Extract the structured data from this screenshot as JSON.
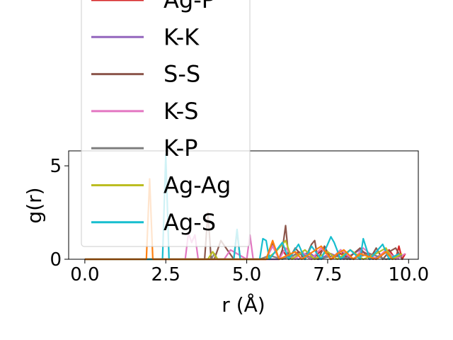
{
  "chart_data": {
    "type": "line",
    "title": "",
    "xlabel": "r (Å)",
    "ylabel": "g(r)",
    "xlim": [
      -0.5,
      10.3
    ],
    "ylim": [
      0,
      5.8
    ],
    "xticks": [
      0.0,
      2.5,
      5.0,
      7.5,
      10.0
    ],
    "xtick_labels": [
      "0.0",
      "2.5",
      "5.0",
      "7.5",
      "10.0"
    ],
    "yticks": [
      0,
      5
    ],
    "ytick_labels": [
      "0",
      "5"
    ],
    "grid": false,
    "legend_position": "upper-left, extends above plot",
    "series": [
      {
        "name": "Ag-P",
        "color": "#d62728",
        "x": [
          0,
          5.5,
          6.0,
          6.1,
          6.3,
          6.6,
          7.0,
          7.4,
          7.6,
          7.9,
          8.3,
          8.6,
          9.0,
          9.4,
          9.6,
          9.7,
          9.8,
          9.9
        ],
        "y": [
          0,
          0,
          0,
          0.5,
          0,
          0.4,
          0,
          0.6,
          0,
          0.3,
          0,
          0.4,
          0,
          0.5,
          0,
          0.7,
          0,
          0.3
        ]
      },
      {
        "name": "K-K",
        "color": "#9467bd",
        "x": [
          0,
          6.0,
          6.3,
          6.6,
          6.9,
          7.2,
          7.6,
          8.0,
          8.5,
          8.9,
          9.3,
          9.7
        ],
        "y": [
          0,
          0,
          0.2,
          0,
          0.4,
          0,
          0.3,
          0,
          0.5,
          0,
          0.4,
          0
        ]
      },
      {
        "name": "S-S",
        "color": "#8c564b",
        "x": [
          0,
          3.7,
          3.8,
          3.9,
          4.0,
          4.2,
          4.6,
          4.7,
          4.8,
          5.6,
          5.8,
          6.0,
          6.1,
          6.2,
          6.3,
          6.5,
          6.8,
          7.0,
          7.1,
          7.2,
          7.4,
          7.6,
          7.9,
          8.1,
          8.5,
          8.8,
          9.0,
          9.2,
          9.4,
          9.6,
          9.8
        ],
        "y": [
          0,
          0,
          2.5,
          0,
          0,
          1.0,
          0,
          1.5,
          0,
          0,
          0.9,
          0,
          0.5,
          1.8,
          0,
          0.6,
          0,
          0.8,
          1.0,
          0,
          0.7,
          0,
          0.5,
          0,
          0.6,
          0,
          0.6,
          0,
          0.4,
          0.6,
          0
        ]
      },
      {
        "name": "K-S",
        "color": "#e377c2",
        "x": [
          0,
          3.1,
          3.2,
          3.3,
          3.4,
          3.5,
          4.3,
          4.5,
          5.0,
          5.1,
          5.2,
          5.6,
          5.8,
          6.0,
          6.2,
          6.5,
          6.7,
          7.0,
          7.3,
          7.6,
          7.9,
          8.3,
          8.6,
          9.0,
          9.3,
          9.6,
          9.9
        ],
        "y": [
          0,
          0,
          1.4,
          0.9,
          1.3,
          0,
          0,
          0.5,
          0,
          1.3,
          0,
          0,
          0.7,
          0,
          0.6,
          0,
          0.4,
          0,
          0.6,
          0,
          0.5,
          0,
          0.6,
          0,
          0.5,
          0,
          0.3
        ]
      },
      {
        "name": "K-P",
        "color": "#7f7f7f",
        "x": [
          0,
          3.9,
          4.0,
          4.1,
          5.4,
          5.7,
          6.1,
          6.6,
          7.2,
          7.7,
          8.2,
          8.8,
          9.3,
          9.8
        ],
        "y": [
          0,
          0,
          0.3,
          0,
          0,
          0.2,
          0,
          0.3,
          0,
          0.2,
          0,
          0.3,
          0,
          0.2
        ]
      },
      {
        "name": "Ag-Ag",
        "color": "#bcbd22",
        "x": [
          0,
          3.8,
          3.95,
          4.1,
          5.6,
          5.9,
          6.2,
          6.4,
          6.8,
          7.1,
          7.5,
          7.8,
          8.2,
          8.6,
          9.0,
          9.3,
          9.5,
          9.8
        ],
        "y": [
          0,
          0,
          0.4,
          0,
          0,
          0.4,
          1.0,
          0,
          0.5,
          0,
          0.4,
          0,
          0.5,
          0,
          0.3,
          0.6,
          0,
          0.3
        ]
      },
      {
        "name": "Ag-S",
        "color": "#17becf",
        "x": [
          0,
          2.4,
          2.5,
          2.6,
          4.6,
          4.7,
          4.8,
          5.4,
          5.5,
          5.6,
          5.7,
          6.1,
          6.3,
          6.6,
          6.8,
          7.0,
          7.3,
          7.6,
          7.7,
          7.9,
          8.2,
          8.5,
          8.6,
          8.8,
          9.0,
          9.2,
          9.4,
          9.7
        ],
        "y": [
          0,
          0,
          5.6,
          0,
          0,
          1.6,
          0,
          0,
          1.1,
          1.0,
          0,
          0.9,
          0,
          0.8,
          0,
          0.7,
          0,
          1.2,
          0.9,
          0,
          0.5,
          0,
          1.1,
          0,
          0.4,
          0.8,
          0,
          0.3
        ]
      },
      {
        "name": "",
        "color": "#ff7f0e",
        "x": [
          0,
          1.9,
          2.0,
          2.1,
          5.6,
          5.8,
          6.0,
          6.5,
          6.7,
          7.3,
          7.6,
          7.8,
          8.0,
          8.3,
          8.5,
          9.0,
          9.3,
          9.5
        ],
        "y": [
          0,
          0,
          4.3,
          0,
          0,
          1.0,
          0,
          0.4,
          0,
          0.7,
          0,
          0.3,
          0.5,
          0,
          0.3,
          0,
          0.4,
          0
        ]
      }
    ]
  }
}
